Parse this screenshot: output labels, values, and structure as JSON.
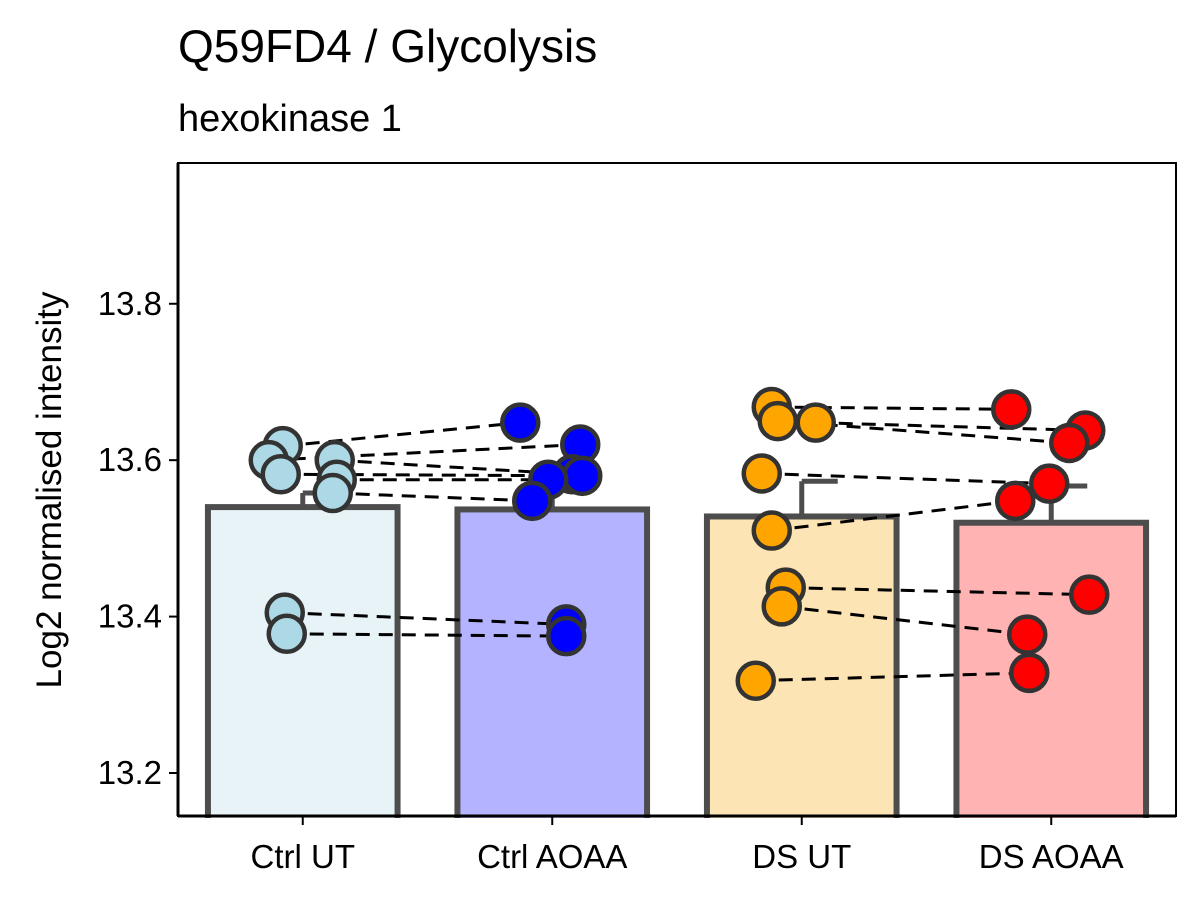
{
  "chart_data": {
    "type": "bar",
    "title": "Q59FD4 / Glycolysis",
    "subtitle": "hexokinase 1",
    "xlabel": "",
    "ylabel": "Log2 normalised intensity",
    "ylim": [
      13.145,
      13.98
    ],
    "yticks": [
      13.2,
      13.4,
      13.6,
      13.8
    ],
    "ytick_labels": [
      "13.2",
      "13.4",
      "13.6",
      "13.8"
    ],
    "grid": false,
    "categories": [
      "Ctrl UT",
      "Ctrl AOAA",
      "DS UT",
      "DS AOAA"
    ],
    "values": [
      13.54,
      13.537,
      13.528,
      13.52
    ],
    "error_upper": [
      13.558,
      13.565,
      13.573,
      13.567
    ],
    "bar_fill_colors": [
      "#e8f3f8",
      "#b3b3ff",
      "#fde4b4",
      "#ffb3b3"
    ],
    "point_colors": [
      "#add8e6",
      "#0000ff",
      "#ffa500",
      "#ff0000"
    ],
    "points": [
      [
        13.618,
        13.6,
        13.6,
        13.582,
        13.575,
        13.558,
        13.405,
        13.378
      ],
      [
        13.648,
        13.62,
        13.582,
        13.58,
        13.575,
        13.548,
        13.39,
        13.375
      ],
      [
        13.668,
        13.648,
        13.65,
        13.583,
        13.51,
        13.437,
        13.413,
        13.318
      ],
      [
        13.665,
        13.638,
        13.622,
        13.57,
        13.548,
        13.428,
        13.377,
        13.328
      ]
    ],
    "pairs": [
      {
        "from": [
          0,
          0
        ],
        "to": [
          1,
          0
        ]
      },
      {
        "from": [
          0,
          1
        ],
        "to": [
          1,
          1
        ]
      },
      {
        "from": [
          0,
          2
        ],
        "to": [
          1,
          2
        ]
      },
      {
        "from": [
          0,
          3
        ],
        "to": [
          1,
          3
        ]
      },
      {
        "from": [
          0,
          4
        ],
        "to": [
          1,
          4
        ]
      },
      {
        "from": [
          0,
          5
        ],
        "to": [
          1,
          5
        ]
      },
      {
        "from": [
          0,
          6
        ],
        "to": [
          1,
          6
        ]
      },
      {
        "from": [
          0,
          7
        ],
        "to": [
          1,
          7
        ]
      },
      {
        "from": [
          2,
          0
        ],
        "to": [
          3,
          0
        ]
      },
      {
        "from": [
          2,
          1
        ],
        "to": [
          3,
          1
        ]
      },
      {
        "from": [
          2,
          2
        ],
        "to": [
          3,
          2
        ]
      },
      {
        "from": [
          2,
          3
        ],
        "to": [
          3,
          3
        ]
      },
      {
        "from": [
          2,
          4
        ],
        "to": [
          3,
          4
        ]
      },
      {
        "from": [
          2,
          5
        ],
        "to": [
          3,
          5
        ]
      },
      {
        "from": [
          2,
          6
        ],
        "to": [
          3,
          6
        ]
      },
      {
        "from": [
          2,
          7
        ],
        "to": [
          3,
          7
        ]
      }
    ]
  }
}
